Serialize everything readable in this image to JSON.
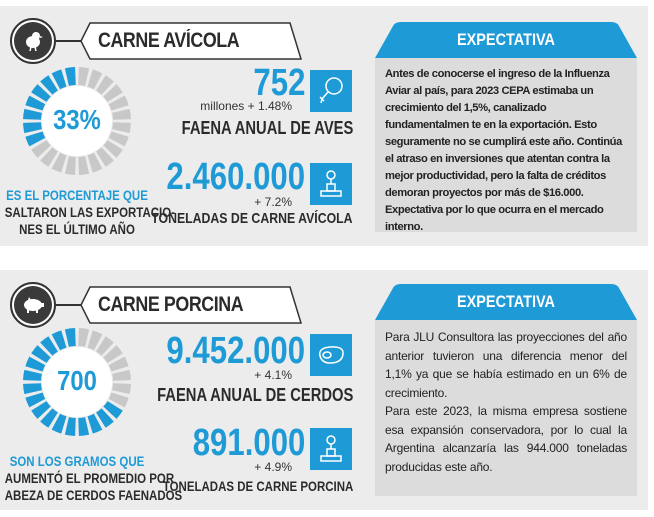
{
  "colors": {
    "accent": "#1e9ad6",
    "ring_empty": "#c8c8c8",
    "dark": "#3a3a3a"
  },
  "sections": [
    {
      "title": "CARNE AVÍCOLA",
      "icon": "chick-icon",
      "ring": {
        "value_label": "33%",
        "fill": 0.33
      },
      "caption": {
        "highlight": "ES EL PORCENTAJE QUE",
        "line2": "SALTARON LAS EXPORTACIO-",
        "line3": "NES EL ÚLTIMO AÑO"
      },
      "stat1": {
        "value": "752",
        "sub": "millones + 1.48%",
        "label": "FAENA ANUAL DE AVES",
        "icon": "chicken-leg-icon"
      },
      "stat2": {
        "value": "2.460.000",
        "sub": "+ 7.2%",
        "label": "TONELADAS DE CARNE AVÍCOLA",
        "icon": "scale-icon"
      },
      "expectativa": {
        "title": "EXPECTATIVA",
        "paragraphs": [
          "Antes de conocerse el ingreso de la Influenza Aviar al país, para 2023 CEPA estimaba un crecimiento del 1,5%, canalizado fundamentalmen te en la exportación. Esto seguramente no se cumplirá este año. Continúa el atraso en inversiones que atentan contra la mejor productividad, pero la falta de créditos demoran proyectos por más de $16.000. Expectativa por lo que ocurra en el mercado interno."
        ]
      }
    },
    {
      "title": "CARNE PORCINA",
      "icon": "pig-icon",
      "ring": {
        "value_label": "700",
        "fill": 0.67
      },
      "caption": {
        "highlight": "SON LOS GRAMOS QUE",
        "line2": "AUMENTÓ EL PROMEDIO POR",
        "line3": "ABEZA DE CERDOS FAENADOS"
      },
      "stat1": {
        "value": "9.452.000",
        "sub": "+ 4.1%",
        "label": "FAENA ANUAL DE CERDOS",
        "icon": "steak-icon"
      },
      "stat2": {
        "value": "891.000",
        "sub": "+ 4.9%",
        "label": "TONELADAS DE CARNE PORCINA",
        "icon": "scale-icon"
      },
      "expectativa": {
        "title": "EXPECTATIVA",
        "paragraphs": [
          "Para JLU Consultora las proyecciones del año anterior tuvieron una diferencia menor del 1,1% ya que se había estimado en un 6% de crecimiento.",
          "Para este 2023, la misma empresa sostiene esa expansión conservadora, por lo cual la Argentina alcanzaría las 944.000 toneladas producidas este año."
        ]
      }
    }
  ]
}
